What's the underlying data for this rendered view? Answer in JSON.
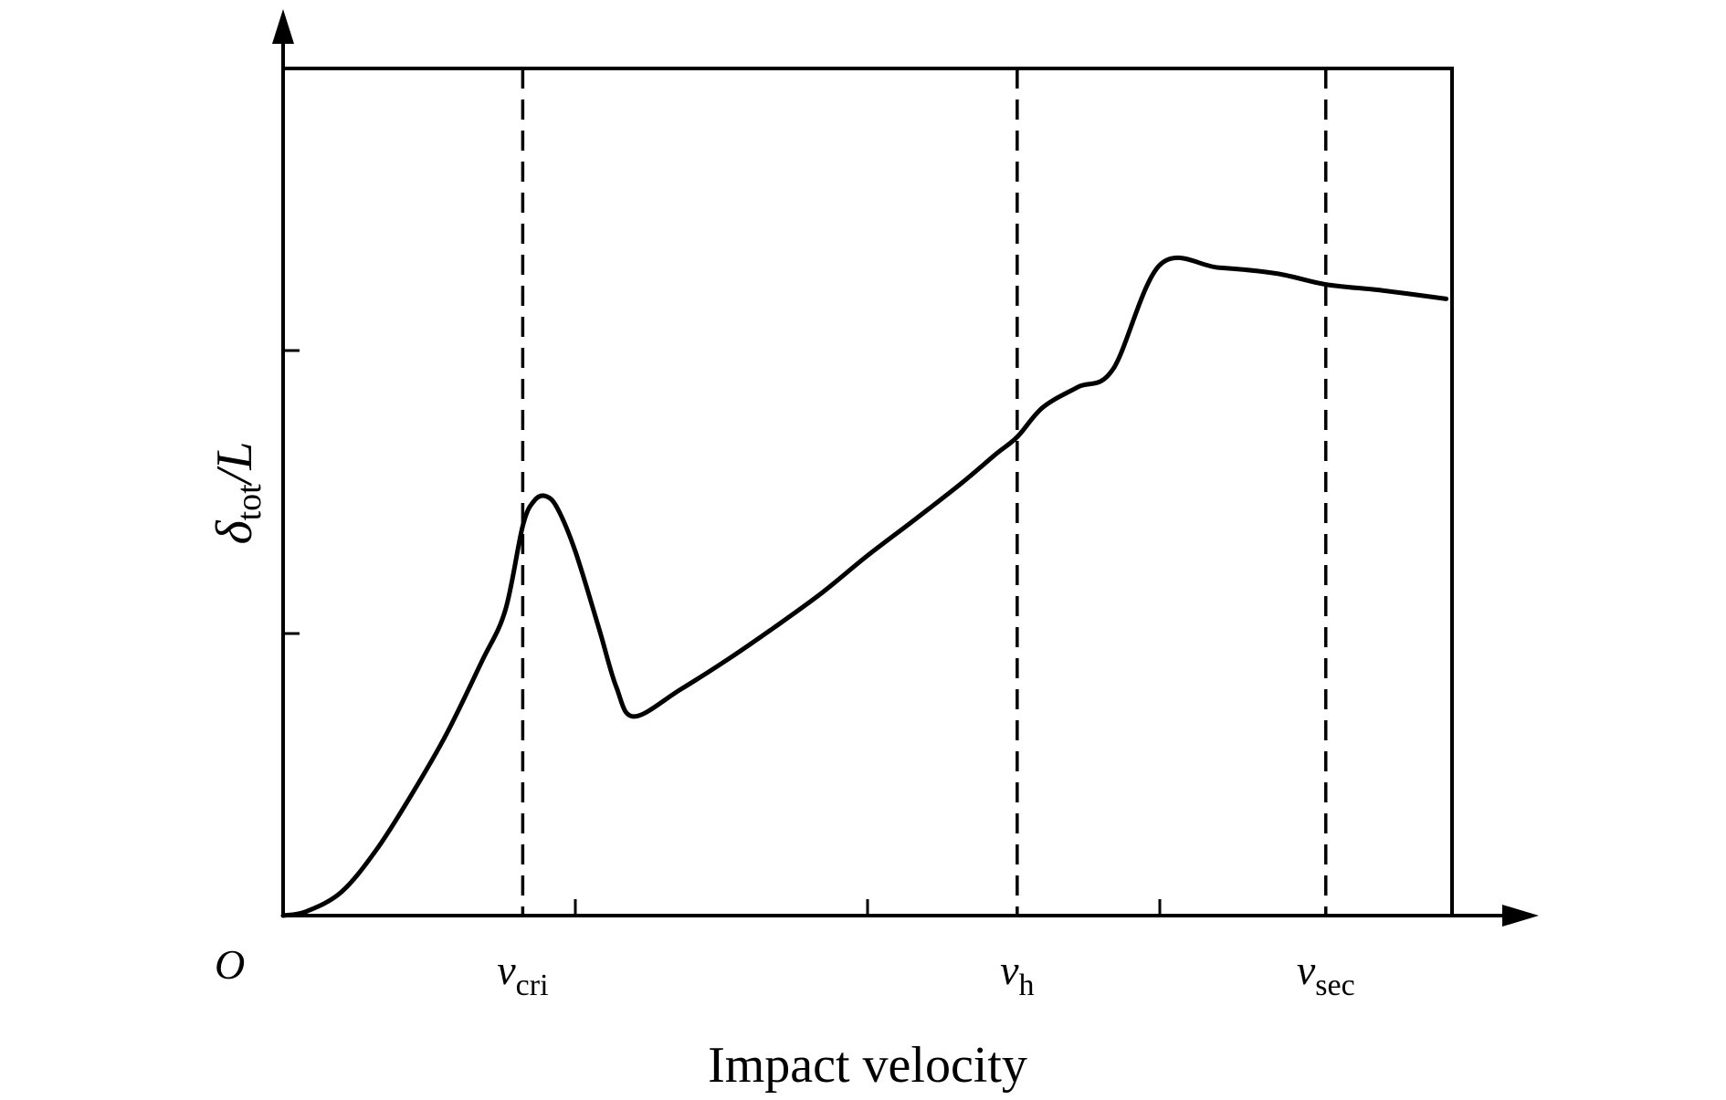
{
  "chart_data": {
    "type": "line",
    "xlabel": "Impact velocity",
    "ylabel": {
      "symbol": "δ",
      "subscript": "tot",
      "suffix": "/L"
    },
    "origin_label": "O",
    "xlim": [
      0,
      1
    ],
    "ylim": [
      0,
      1
    ],
    "grid": false,
    "legend": "none",
    "x_ticks": [
      0.25,
      0.5,
      0.75
    ],
    "y_ticks": [
      0.333,
      0.667
    ],
    "reference_lines": [
      {
        "symbol": "v",
        "subscript": "cri",
        "x": 0.205
      },
      {
        "symbol": "v",
        "subscript": "h",
        "x": 0.628
      },
      {
        "symbol": "v",
        "subscript": "sec",
        "x": 0.892
      }
    ],
    "series": [
      {
        "color": "#000000",
        "x": [
          0.0,
          0.02,
          0.05,
          0.08,
          0.11,
          0.14,
          0.17,
          0.19,
          0.205,
          0.215,
          0.225,
          0.235,
          0.25,
          0.27,
          0.285,
          0.3,
          0.34,
          0.38,
          0.42,
          0.46,
          0.5,
          0.54,
          0.58,
          0.61,
          0.628,
          0.65,
          0.68,
          0.71,
          0.75,
          0.8,
          0.85,
          0.892,
          0.94,
          0.995
        ],
        "y": [
          0.0,
          0.005,
          0.028,
          0.078,
          0.143,
          0.215,
          0.3,
          0.36,
          0.46,
          0.49,
          0.495,
          0.48,
          0.43,
          0.34,
          0.27,
          0.235,
          0.267,
          0.302,
          0.34,
          0.38,
          0.425,
          0.467,
          0.51,
          0.545,
          0.565,
          0.6,
          0.624,
          0.645,
          0.768,
          0.765,
          0.758,
          0.745,
          0.738,
          0.728
        ]
      }
    ]
  }
}
